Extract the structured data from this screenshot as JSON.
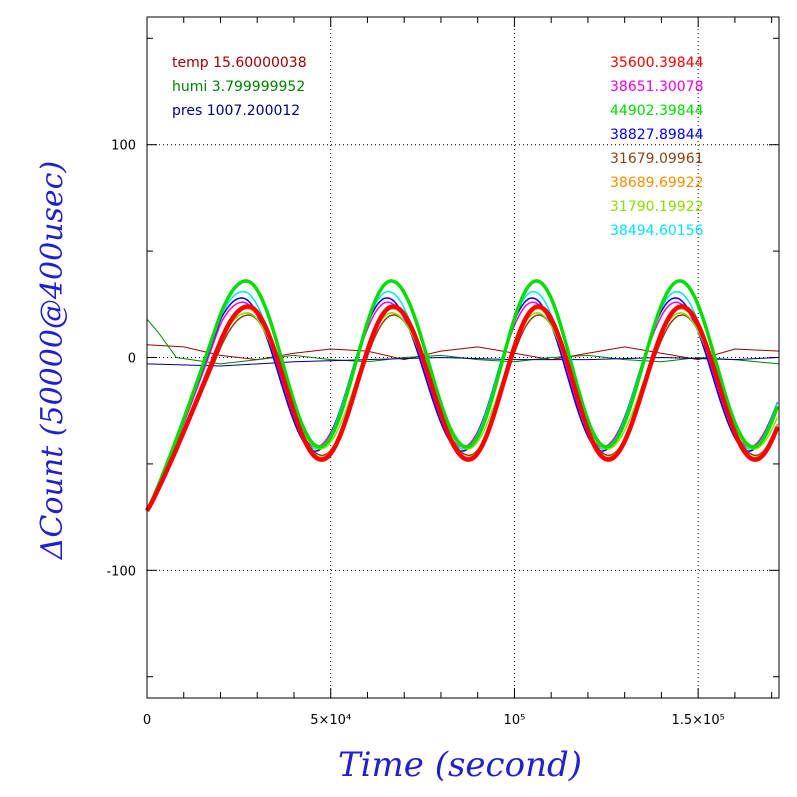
{
  "chart_data": {
    "type": "line",
    "xlabel": "Time (second)",
    "ylabel": "ΔCount (50000@400usec)",
    "xlim": [
      0,
      172000
    ],
    "ylim": [
      -160,
      160
    ],
    "grid": true,
    "x_ticks": [
      {
        "value": 0,
        "label": "0"
      },
      {
        "value": 50000,
        "label": "5×10⁴"
      },
      {
        "value": 100000,
        "label": "10⁵"
      },
      {
        "value": 150000,
        "label": "1.5×10⁵"
      }
    ],
    "y_ticks": [
      {
        "value": 100,
        "label": "100"
      },
      {
        "value": 0,
        "label": "0"
      },
      {
        "value": -100,
        "label": "-100"
      }
    ],
    "env_legend": [
      {
        "text": "temp 15.60000038",
        "color": "#a00000"
      },
      {
        "text": "humi 3.799999952",
        "color": "#008000"
      },
      {
        "text": "pres 1007.200012",
        "color": "#000080"
      }
    ],
    "series_legend": [
      {
        "text": "35600.39844",
        "color": "#ff0000"
      },
      {
        "text": "38651.30078",
        "color": "#ee00ee"
      },
      {
        "text": "44902.39844",
        "color": "#00dd00"
      },
      {
        "text": "38827.89844",
        "color": "#0000ff"
      },
      {
        "text": "31679.09961",
        "color": "#8b4513"
      },
      {
        "text": "38689.69922",
        "color": "#ff8c00"
      },
      {
        "text": "31790.19922",
        "color": "#88e000"
      },
      {
        "text": "38494.60156",
        "color": "#00e5ff"
      }
    ],
    "oscillation": {
      "period": 40000,
      "crest_times": [
        27000,
        66500,
        106000,
        145000
      ],
      "trough_times": [
        47000,
        87000,
        125000,
        165000
      ],
      "start_value": -72
    },
    "series": [
      {
        "name": "35600.39844",
        "color": "#ff0000",
        "amplitude": 36,
        "offset": -12,
        "lag": 500,
        "width": 4.5
      },
      {
        "name": "38651.30078",
        "color": "#ee00ee",
        "amplitude": 34,
        "offset": -8,
        "lag": -1000,
        "width": 1.5
      },
      {
        "name": "44902.39844",
        "color": "#00dd00",
        "amplitude": 39,
        "offset": -3,
        "lag": 0,
        "width": 3.5
      },
      {
        "name": "38827.89844",
        "color": "#0000ff",
        "amplitude": 36,
        "offset": -8,
        "lag": -1200,
        "width": 1.5
      },
      {
        "name": "31679.09961",
        "color": "#8b4513",
        "amplitude": 33,
        "offset": -13,
        "lag": 600,
        "width": 1.5
      },
      {
        "name": "38689.69922",
        "color": "#ff8c00",
        "amplitude": 35,
        "offset": -12,
        "lag": 300,
        "width": 1.5
      },
      {
        "name": "31790.19922",
        "color": "#88e000",
        "amplitude": 32,
        "offset": -11,
        "lag": 200,
        "width": 1.5
      },
      {
        "name": "38494.60156",
        "color": "#00e5ff",
        "amplitude": 37,
        "offset": -6,
        "lag": -800,
        "width": 1.5
      }
    ],
    "env_series": [
      {
        "name": "temp",
        "color": "#a00000",
        "points": [
          [
            0,
            6
          ],
          [
            10000,
            5
          ],
          [
            20000,
            1
          ],
          [
            30000,
            -1
          ],
          [
            40000,
            2
          ],
          [
            50000,
            4
          ],
          [
            60000,
            3
          ],
          [
            70000,
            -1
          ],
          [
            80000,
            3
          ],
          [
            90000,
            5
          ],
          [
            100000,
            2
          ],
          [
            110000,
            -1
          ],
          [
            120000,
            2
          ],
          [
            130000,
            5
          ],
          [
            140000,
            2
          ],
          [
            150000,
            -1
          ],
          [
            160000,
            4
          ],
          [
            172000,
            3
          ]
        ]
      },
      {
        "name": "humi",
        "color": "#008000",
        "points": [
          [
            0,
            18
          ],
          [
            3000,
            12
          ],
          [
            8000,
            0
          ],
          [
            20000,
            -3
          ],
          [
            30000,
            -1
          ],
          [
            40000,
            1
          ],
          [
            50000,
            -1
          ],
          [
            60000,
            -2
          ],
          [
            70000,
            0
          ],
          [
            80000,
            1
          ],
          [
            90000,
            -1
          ],
          [
            100000,
            -2
          ],
          [
            110000,
            0
          ],
          [
            120000,
            1
          ],
          [
            130000,
            -1
          ],
          [
            140000,
            -2
          ],
          [
            150000,
            0
          ],
          [
            160000,
            -1
          ],
          [
            172000,
            -3
          ]
        ]
      },
      {
        "name": "pres",
        "color": "#000080",
        "points": [
          [
            0,
            -3
          ],
          [
            20000,
            -4
          ],
          [
            40000,
            -2
          ],
          [
            60000,
            -1
          ],
          [
            80000,
            0
          ],
          [
            100000,
            -1
          ],
          [
            120000,
            -1
          ],
          [
            140000,
            0
          ],
          [
            160000,
            -1
          ],
          [
            172000,
            0
          ]
        ]
      }
    ]
  }
}
